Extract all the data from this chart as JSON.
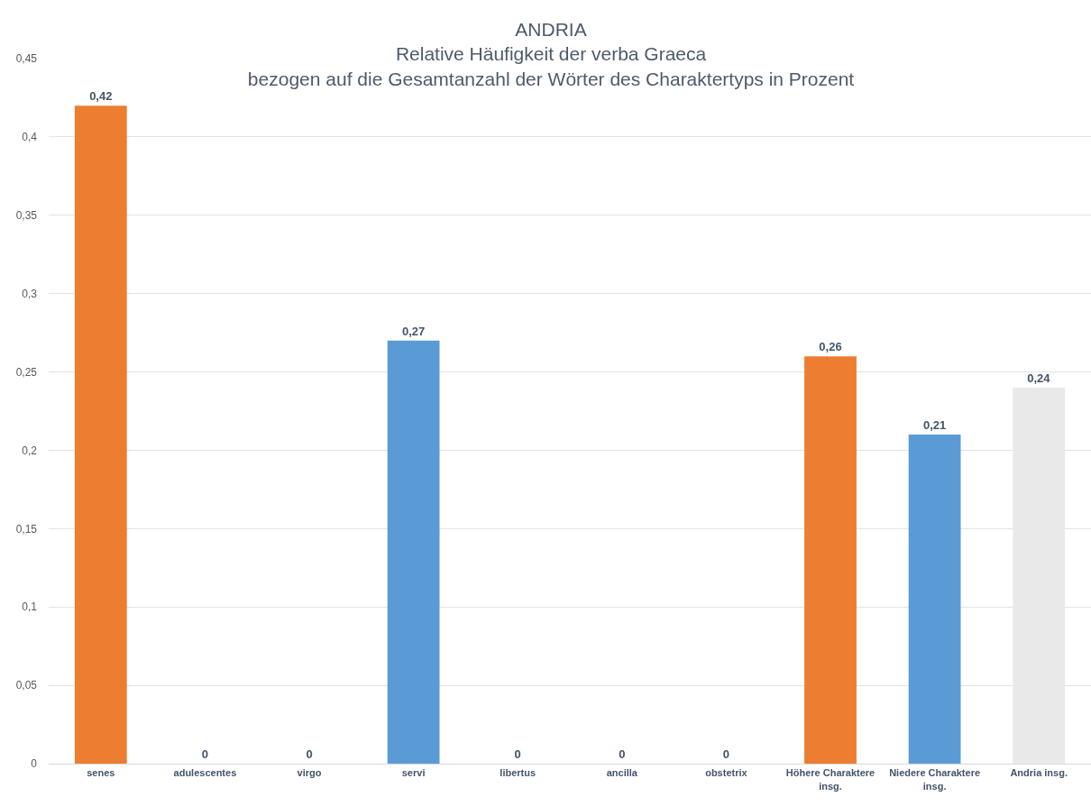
{
  "chart_data": {
    "type": "bar",
    "title": "ANDRIA",
    "subtitle": "Relative Häufigkeit der verba Graeca\nbezogen auf die Gesamtanzahl der Wörter des Charaktertyps in Prozent",
    "categories": [
      "senes",
      "adulescentes",
      "virgo",
      "servi",
      "libertus",
      "ancilla",
      "obstetrix",
      "Höhere Charaktere insg.",
      "Niedere Charaktere insg.",
      "Andria insg."
    ],
    "values": [
      0.42,
      0,
      0,
      0.27,
      0,
      0,
      0,
      0.26,
      0.21,
      0.24
    ],
    "colors": [
      "#ed7d31",
      "#ed7d31",
      "#ed7d31",
      "#5b9bd5",
      "#5b9bd5",
      "#5b9bd5",
      "#5b9bd5",
      "#ed7d31",
      "#5b9bd5",
      "#e9e9e9"
    ],
    "value_labels": [
      "0,42",
      "0",
      "0",
      "0,27",
      "0",
      "0",
      "0",
      "0,26",
      "0,21",
      "0,24"
    ],
    "ylim": [
      0,
      0.45
    ],
    "yticks": [
      0,
      {
        "value": 0.05,
        "label": "0,05"
      },
      {
        "value": 0.1,
        "label": "0,1"
      },
      {
        "value": 0.15,
        "label": "0,15"
      },
      {
        "value": 0.2,
        "label": "0,2"
      },
      {
        "value": 0.25,
        "label": "0,25"
      },
      {
        "value": 0.3,
        "label": "0,3"
      },
      {
        "value": 0.35,
        "label": "0,35"
      },
      {
        "value": 0.4,
        "label": "0,4"
      },
      {
        "value": 0.45,
        "label": "0,45"
      }
    ],
    "grid": "y"
  }
}
